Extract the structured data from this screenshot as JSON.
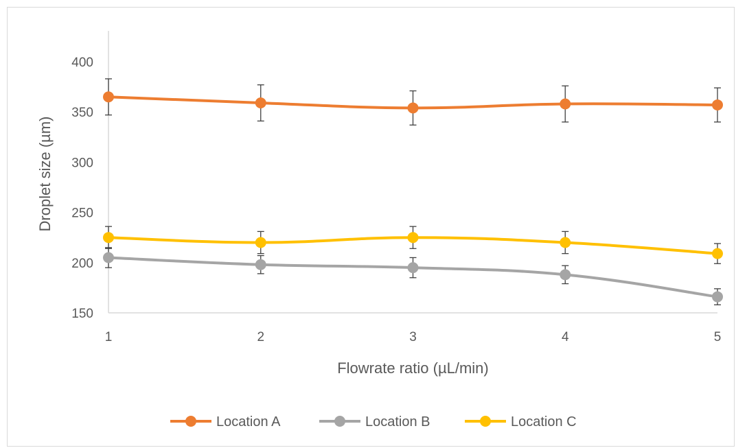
{
  "chart_data": {
    "type": "line",
    "title": "",
    "xlabel": "Flowrate ratio (µL/min)",
    "ylabel": "Droplet size (µm)",
    "x": [
      1,
      2,
      3,
      4,
      5
    ],
    "x_tick_labels": [
      "1",
      "2",
      "3",
      "4",
      "5"
    ],
    "ylim": [
      150,
      400
    ],
    "y_ticks": [
      150,
      200,
      250,
      300,
      350,
      400
    ],
    "y_tick_labels": [
      "150",
      "200",
      "250",
      "300",
      "350",
      "400"
    ],
    "grid": false,
    "legend_position": "bottom",
    "error_bars": true,
    "series": [
      {
        "name": "Location A",
        "color": "#ED7D31",
        "values": [
          365,
          359,
          354,
          358,
          357
        ],
        "errors": [
          18,
          18,
          17,
          18,
          17
        ]
      },
      {
        "name": "Location B",
        "color": "#A5A5A5",
        "values": [
          205,
          198,
          195,
          188,
          166
        ],
        "errors": [
          10,
          9,
          10,
          9,
          8
        ]
      },
      {
        "name": "Location C",
        "color": "#FFC000",
        "values": [
          225,
          220,
          225,
          220,
          209
        ],
        "errors": [
          11,
          11,
          11,
          11,
          10
        ]
      }
    ]
  }
}
